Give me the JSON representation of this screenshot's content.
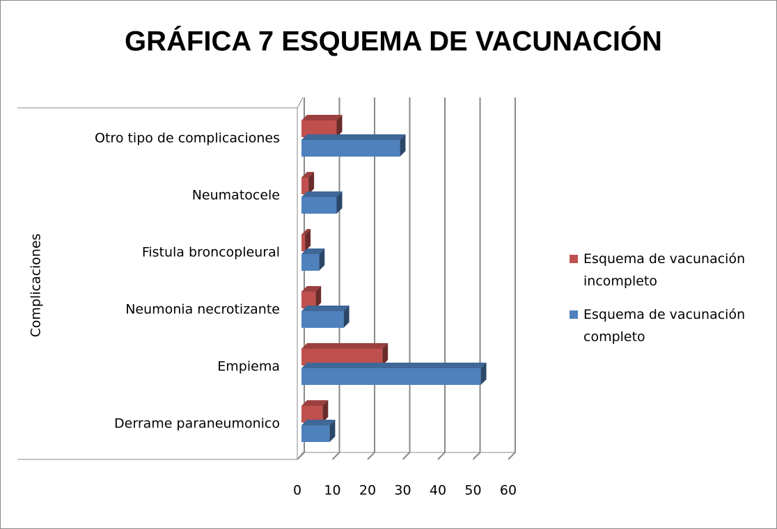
{
  "chart_data": {
    "type": "bar",
    "orientation": "horizontal",
    "three_d": true,
    "title": "GRÁFICA 7 ESQUEMA DE VACUNACIÓN",
    "y_label": "Complicaciones",
    "categories": [
      "Otro tipo de complicaciones",
      "Neumatocele",
      "Fistula broncopleural",
      "Neumonia necrotizante",
      "Empiema",
      "Derrame paraneumonico"
    ],
    "series": [
      {
        "name": "Esquema de vacunación incompleto",
        "color": "#c0504d",
        "values": [
          10,
          2,
          1,
          4,
          23,
          6
        ]
      },
      {
        "name": "Esquema de vacunación completo",
        "color": "#4f81bd",
        "values": [
          28,
          10,
          5,
          12,
          51,
          8
        ]
      }
    ],
    "xlim": [
      0,
      60
    ],
    "xticks": [
      0,
      10,
      20,
      30,
      40,
      50,
      60
    ],
    "grid": true,
    "legend": "right"
  }
}
